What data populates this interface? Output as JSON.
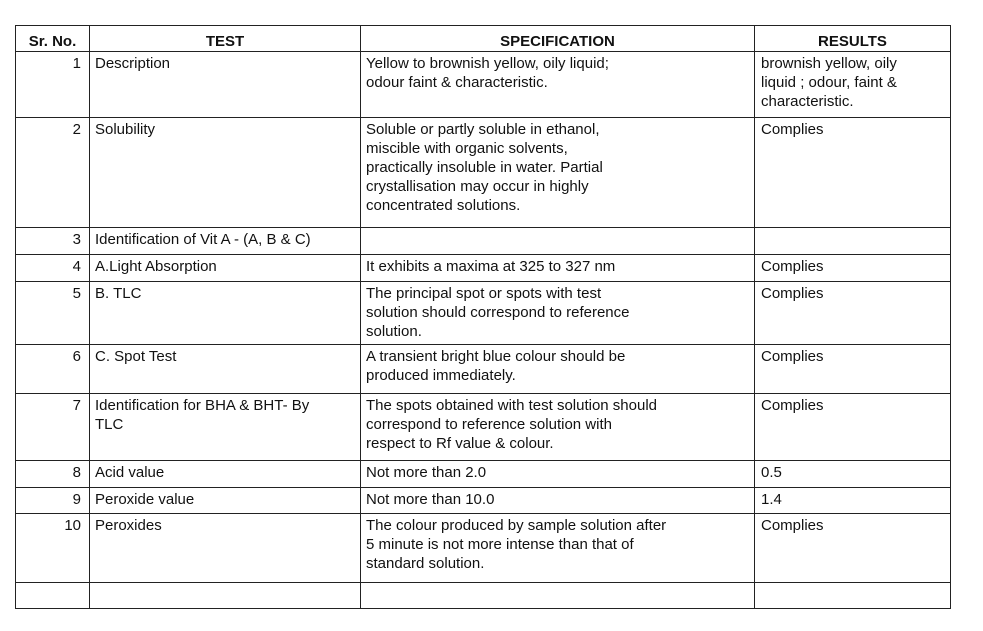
{
  "headers": {
    "sr": "Sr. No.",
    "test": "TEST",
    "spec": "SPECIFICATION",
    "results": "RESULTS"
  },
  "rows": [
    {
      "sr": "1",
      "test": "Description",
      "spec": "Yellow to brownish yellow, oily liquid;\nodour faint & characteristic.",
      "result": " brownish yellow, oily\nliquid ; odour, faint &\ncharacteristic."
    },
    {
      "sr": "2",
      "test": "Solubility",
      "spec": "Soluble or partly soluble in ethanol,\nmiscible with organic  solvents,\npractically insoluble in water. Partial\ncrystallisation may occur in highly\nconcentrated  solutions.",
      "result": "Complies"
    },
    {
      "sr": "3",
      "test": "Identification of Vit A - (A, B & C)",
      "spec": "",
      "result": ""
    },
    {
      "sr": "4",
      "test": "A.Light Absorption",
      "spec": "It exhibits a maxima at 325 to 327 nm",
      "result": "Complies"
    },
    {
      "sr": "5",
      "test": "B. TLC",
      "spec": "The principal spot or spots with test\nsolution should correspond to reference\nsolution.",
      "result": "Complies"
    },
    {
      "sr": "6",
      "test": "C. Spot Test",
      "spec": "A transient bright blue colour should be\nproduced immediately.",
      "result": "Complies"
    },
    {
      "sr": "7",
      "test": "Identification for BHA & BHT- By\nTLC",
      "spec": "The spots obtained with test solution should\ncorrespond to reference solution with\nrespect to Rf value & colour.",
      "result": "Complies"
    },
    {
      "sr": "8",
      "test": "Acid value",
      "spec": "Not more than 2.0",
      "result": "0.5"
    },
    {
      "sr": "9",
      "test": "Peroxide value",
      "spec": "Not more than 10.0",
      "result": "1.4"
    },
    {
      "sr": "10",
      "test": "Peroxides",
      "spec": "The colour produced by sample solution after\n5 minute is not more intense than that of\nstandard solution.",
      "result": "Complies"
    },
    {
      "sr": "",
      "test": "",
      "spec": "",
      "result": ""
    }
  ]
}
